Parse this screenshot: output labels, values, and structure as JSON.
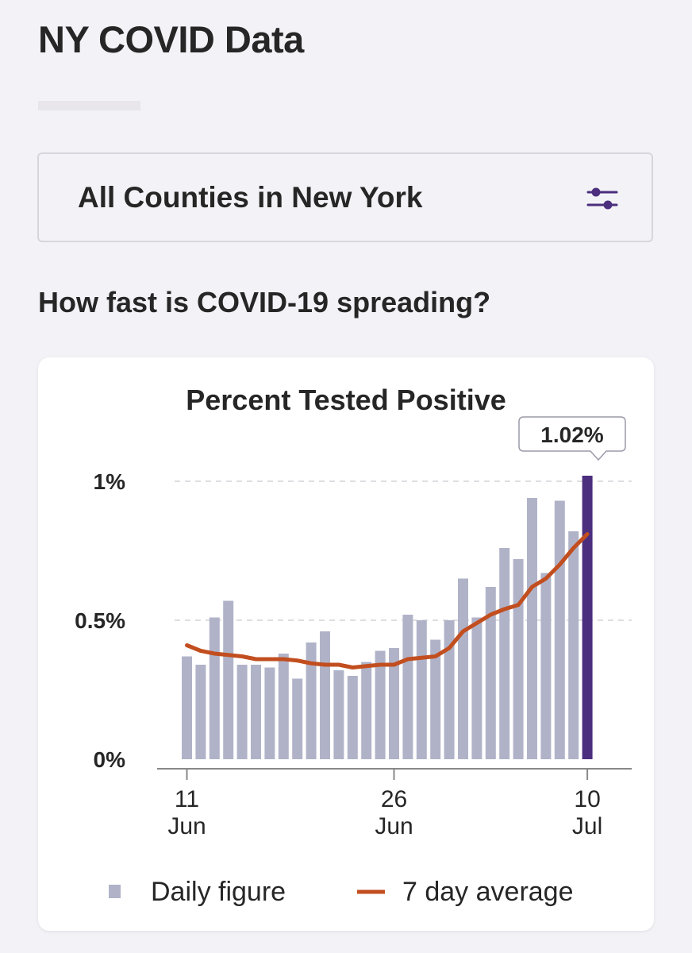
{
  "header": {
    "title": "NY COVID Data"
  },
  "selector": {
    "label": "All Counties in New York",
    "icon": "sliders-icon"
  },
  "section": {
    "heading": "How fast is COVID-19 spreading?"
  },
  "colors": {
    "bar": "#b0b3c8",
    "highlight_bar": "#4c2e7e",
    "average_line": "#c24e1f",
    "icon": "#4c2e7e"
  },
  "chart_data": {
    "type": "bar",
    "title": "Percent Tested Positive",
    "callout": "1.02%",
    "y_unit": "%",
    "ylim": [
      0,
      1.02
    ],
    "yticks": [
      {
        "value": 0,
        "label": "0%"
      },
      {
        "value": 0.5,
        "label": "0.5%"
      },
      {
        "value": 1,
        "label": "1%"
      }
    ],
    "xticks": [
      {
        "index": 0,
        "day": "11",
        "month": "Jun"
      },
      {
        "index": 15,
        "day": "26",
        "month": "Jun"
      },
      {
        "index": 29,
        "day": "10",
        "month": "Jul"
      }
    ],
    "categories": [
      "Jun 11",
      "Jun 12",
      "Jun 13",
      "Jun 14",
      "Jun 15",
      "Jun 16",
      "Jun 17",
      "Jun 18",
      "Jun 19",
      "Jun 20",
      "Jun 21",
      "Jun 22",
      "Jun 23",
      "Jun 24",
      "Jun 25",
      "Jun 26",
      "Jun 27",
      "Jun 28",
      "Jun 29",
      "Jun 30",
      "Jul 1",
      "Jul 2",
      "Jul 3",
      "Jul 4",
      "Jul 5",
      "Jul 6",
      "Jul 7",
      "Jul 8",
      "Jul 9",
      "Jul 10"
    ],
    "highlight_index": 29,
    "grid": true,
    "legend_position": "bottom",
    "series": [
      {
        "name": "Daily figure",
        "type": "bar",
        "values": [
          0.37,
          0.34,
          0.51,
          0.57,
          0.34,
          0.34,
          0.33,
          0.38,
          0.29,
          0.42,
          0.46,
          0.32,
          0.3,
          0.35,
          0.39,
          0.4,
          0.52,
          0.5,
          0.43,
          0.5,
          0.65,
          0.51,
          0.62,
          0.76,
          0.72,
          0.94,
          0.67,
          0.93,
          0.82,
          1.02
        ]
      },
      {
        "name": "7 day average",
        "type": "line",
        "values": [
          0.41,
          0.39,
          0.38,
          0.375,
          0.37,
          0.36,
          0.36,
          0.36,
          0.355,
          0.345,
          0.34,
          0.34,
          0.33,
          0.335,
          0.34,
          0.34,
          0.36,
          0.365,
          0.37,
          0.4,
          0.46,
          0.49,
          0.52,
          0.54,
          0.555,
          0.62,
          0.65,
          0.7,
          0.76,
          0.81
        ]
      }
    ]
  }
}
